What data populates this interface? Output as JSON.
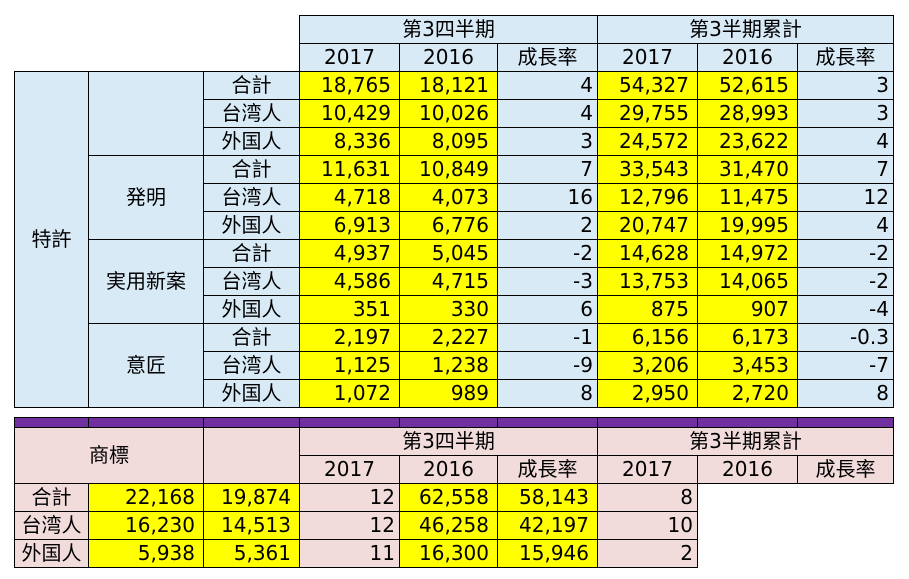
{
  "headers": {
    "quarter": "第3四半期",
    "cumulative": "第3半期累計",
    "y2017": "2017",
    "y2016": "2016",
    "growth": "成長率"
  },
  "patent": {
    "label": "特許",
    "groups": [
      {
        "name": "",
        "rows": [
          {
            "sub": "合計",
            "q17": "18,765",
            "q16": "18,121",
            "qg": "4",
            "c17": "54,327",
            "c16": "52,615",
            "cg": "3"
          },
          {
            "sub": "台湾人",
            "q17": "10,429",
            "q16": "10,026",
            "qg": "4",
            "c17": "29,755",
            "c16": "28,993",
            "cg": "3"
          },
          {
            "sub": "外国人",
            "q17": "8,336",
            "q16": "8,095",
            "qg": "3",
            "c17": "24,572",
            "c16": "23,622",
            "cg": "4"
          }
        ]
      },
      {
        "name": "発明",
        "rows": [
          {
            "sub": "合計",
            "q17": "11,631",
            "q16": "10,849",
            "qg": "7",
            "c17": "33,543",
            "c16": "31,470",
            "cg": "7"
          },
          {
            "sub": "台湾人",
            "q17": "4,718",
            "q16": "4,073",
            "qg": "16",
            "c17": "12,796",
            "c16": "11,475",
            "cg": "12"
          },
          {
            "sub": "外国人",
            "q17": "6,913",
            "q16": "6,776",
            "qg": "2",
            "c17": "20,747",
            "c16": "19,995",
            "cg": "4"
          }
        ]
      },
      {
        "name": "実用新案",
        "rows": [
          {
            "sub": "合計",
            "q17": "4,937",
            "q16": "5,045",
            "qg": "-2",
            "c17": "14,628",
            "c16": "14,972",
            "cg": "-2"
          },
          {
            "sub": "台湾人",
            "q17": "4,586",
            "q16": "4,715",
            "qg": "-3",
            "c17": "13,753",
            "c16": "14,065",
            "cg": "-2"
          },
          {
            "sub": "外国人",
            "q17": "351",
            "q16": "330",
            "qg": "6",
            "c17": "875",
            "c16": "907",
            "cg": "-4"
          }
        ]
      },
      {
        "name": "意匠",
        "rows": [
          {
            "sub": "合計",
            "q17": "2,197",
            "q16": "2,227",
            "qg": "-1",
            "c17": "6,156",
            "c16": "6,173",
            "cg": "-0.3"
          },
          {
            "sub": "台湾人",
            "q17": "1,125",
            "q16": "1,238",
            "qg": "-9",
            "c17": "3,206",
            "c16": "3,453",
            "cg": "-7"
          },
          {
            "sub": "外国人",
            "q17": "1,072",
            "q16": "989",
            "qg": "8",
            "c17": "2,950",
            "c16": "2,720",
            "cg": "8"
          }
        ]
      }
    ]
  },
  "trademark": {
    "label": "商標",
    "rows": [
      {
        "sub": "合計",
        "q17": "22,168",
        "q16": "19,874",
        "qg": "12",
        "c17": "62,558",
        "c16": "58,143",
        "cg": "8"
      },
      {
        "sub": "台湾人",
        "q17": "16,230",
        "q16": "14,513",
        "qg": "12",
        "c17": "46,258",
        "c16": "42,197",
        "cg": "10"
      },
      {
        "sub": "外国人",
        "q17": "5,938",
        "q16": "5,361",
        "qg": "11",
        "c17": "16,300",
        "c16": "15,946",
        "cg": "2"
      }
    ]
  },
  "colors": {
    "header_blue": "#d9eaf7",
    "header_pink": "#f2dcdb",
    "value_yellow": "#ffff00",
    "separator_purple": "#7030a0"
  }
}
